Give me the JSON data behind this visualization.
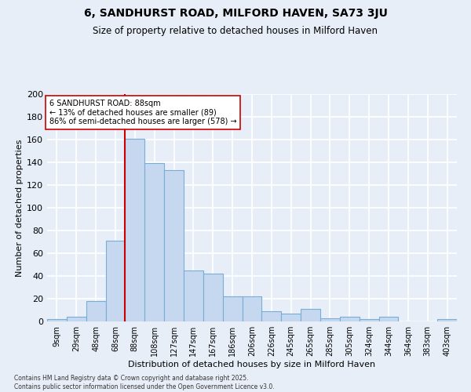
{
  "title1": "6, SANDHURST ROAD, MILFORD HAVEN, SA73 3JU",
  "title2": "Size of property relative to detached houses in Milford Haven",
  "xlabel": "Distribution of detached houses by size in Milford Haven",
  "ylabel": "Number of detached properties",
  "bins": [
    "9sqm",
    "29sqm",
    "48sqm",
    "68sqm",
    "88sqm",
    "108sqm",
    "127sqm",
    "147sqm",
    "167sqm",
    "186sqm",
    "206sqm",
    "226sqm",
    "245sqm",
    "265sqm",
    "285sqm",
    "305sqm",
    "324sqm",
    "344sqm",
    "364sqm",
    "383sqm",
    "403sqm"
  ],
  "bar_heights": [
    2,
    4,
    18,
    71,
    161,
    139,
    133,
    45,
    42,
    22,
    22,
    9,
    7,
    11,
    3,
    4,
    2,
    4,
    0,
    0,
    2
  ],
  "bar_color": "#c5d8f0",
  "bar_edge_color": "#7aadd4",
  "vline_idx": 4,
  "vline_color": "#cc0000",
  "annotation_text": "6 SANDHURST ROAD: 88sqm\n← 13% of detached houses are smaller (89)\n86% of semi-detached houses are larger (578) →",
  "annotation_box_color": "#ffffff",
  "annotation_box_edge": "#cc0000",
  "ylim": [
    0,
    200
  ],
  "yticks": [
    0,
    20,
    40,
    60,
    80,
    100,
    120,
    140,
    160,
    180,
    200
  ],
  "bg_color": "#e8eef8",
  "grid_color": "#ffffff",
  "footer": "Contains HM Land Registry data © Crown copyright and database right 2025.\nContains public sector information licensed under the Open Government Licence v3.0.",
  "title_fontsize": 10,
  "subtitle_fontsize": 8.5,
  "axis_label_fontsize": 8,
  "tick_fontsize": 7,
  "annotation_fontsize": 7
}
